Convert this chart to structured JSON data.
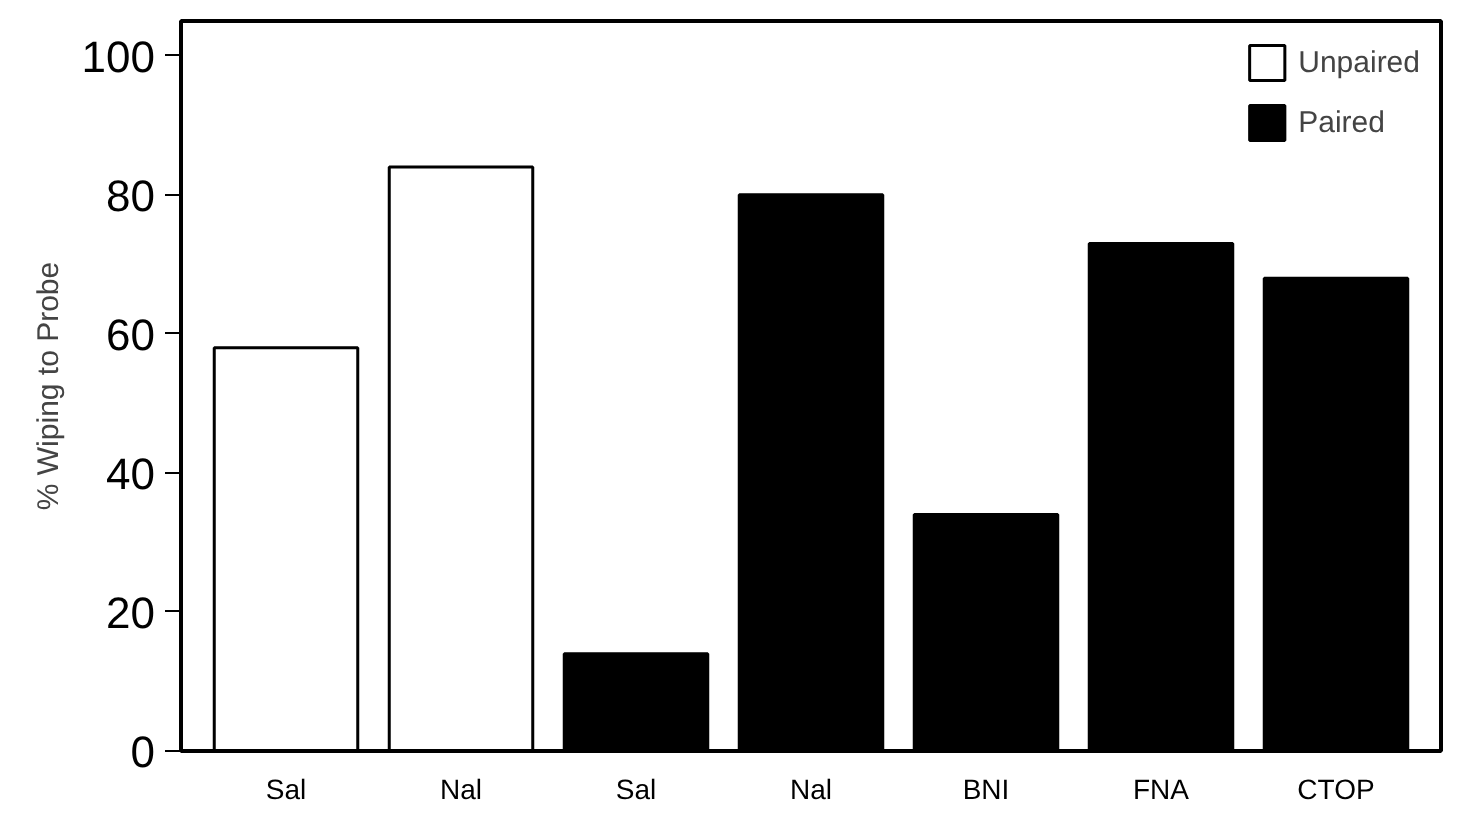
{
  "chart_data": {
    "type": "bar",
    "ylabel": "% Wiping to Probe",
    "categories": [
      "Sal",
      "Nal",
      "Sal",
      "Nal",
      "BNI",
      "FNA",
      "CTOP"
    ],
    "series": [
      {
        "name": "Unpaired",
        "color": "#ffffff",
        "values": [
          58,
          84,
          null,
          null,
          null,
          null,
          null
        ]
      },
      {
        "name": "Paired",
        "color": "#000000",
        "values": [
          null,
          null,
          14,
          80,
          34,
          73,
          68
        ]
      }
    ],
    "ylim": [
      0,
      105
    ],
    "yticks": [
      0,
      20,
      40,
      60,
      80,
      100
    ],
    "grid": false,
    "legend": "top right"
  }
}
